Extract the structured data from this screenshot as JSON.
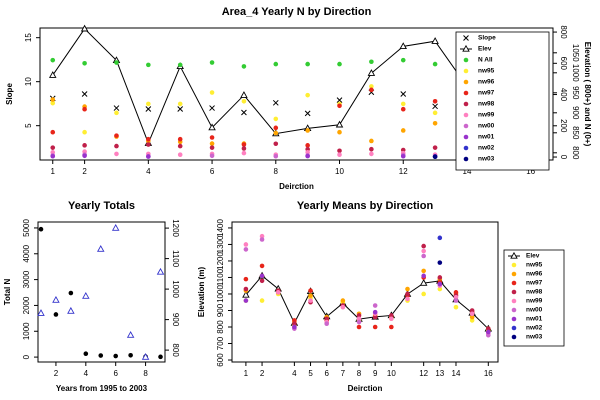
{
  "chart_data": [
    {
      "type": "scatter",
      "title": "Area_4 Yearly N by Direction",
      "xlabel": "Deirction",
      "ylabel": "Slope",
      "y2label": "Elevation ( 800+) and N (0+)",
      "x": [
        1,
        2,
        3,
        4,
        5,
        6,
        7,
        8,
        9,
        10,
        11,
        12,
        13,
        14,
        15,
        16
      ],
      "xlim": [
        0.6,
        16.7
      ],
      "xticks": [
        1,
        2,
        4,
        6,
        8,
        10,
        12,
        14,
        16
      ],
      "ylim": [
        1.1,
        16.1
      ],
      "yticks": [
        5,
        10,
        15
      ],
      "y2lim": [
        -19,
        826
      ],
      "y2ticks": [
        0,
        200,
        400,
        600,
        800
      ],
      "y3lim": [
        782,
        1112
      ],
      "y3ticks": [
        800,
        850,
        900,
        950,
        1000,
        1050
      ],
      "legend": "topright",
      "series": [
        {
          "name": "Slope",
          "color": "#000000",
          "marker": "x",
          "values": [
            8.1,
            8.6,
            7.0,
            6.9,
            6.9,
            7.0,
            6.5,
            7.6,
            6.4,
            7.9,
            8.8,
            8.6,
            7.2,
            6.5,
            6.0,
            6.5
          ]
        },
        {
          "name": "Elev",
          "color": "#000000",
          "marker": "triangle",
          "line": true,
          "axis": "y3",
          "values": [
            994,
            1110,
            1031,
            824,
            1016,
            863,
            944,
            848,
            861,
            870,
            999,
            1066,
            1079,
            966,
            885,
            789
          ]
        },
        {
          "name": "N All",
          "color": "#33cc33",
          "marker": "dot",
          "axis": "y2",
          "values": [
            620,
            600,
            605,
            590,
            590,
            605,
            580,
            595,
            595,
            595,
            610,
            620,
            595,
            595,
            590,
            580
          ]
        },
        {
          "name": "nw95",
          "color": "#ffee33",
          "marker": "dot",
          "axis": "y2",
          "values": [
            345,
            159,
            283,
            340,
            340,
            413,
            357,
            244,
            396,
            340,
            452,
            340,
            283,
            227,
            25,
            10
          ]
        },
        {
          "name": "nw96",
          "color": "#ffa500",
          "marker": "dot",
          "axis": "y2",
          "values": [
            368,
            323,
            131,
            103,
            97,
            86,
            86,
            154,
            170,
            159,
            103,
            170,
            216,
            216,
            10,
            5
          ]
        },
        {
          "name": "nw97",
          "color": "#e8251a",
          "marker": "dot",
          "axis": "y2",
          "values": [
            159,
            306,
            137,
            114,
            114,
            125,
            80,
            187,
            75,
            328,
            430,
            306,
            357,
            390,
            526,
            233
          ]
        },
        {
          "name": "nw98",
          "color": "#c0204a",
          "marker": "dot",
          "axis": "y2",
          "values": [
            60,
            75,
            70,
            80,
            70,
            60,
            55,
            85,
            50,
            40,
            50,
            45,
            60,
            55,
            15,
            20
          ]
        },
        {
          "name": "nw99",
          "color": "#ff80c0",
          "marker": "dot",
          "axis": "y2",
          "values": [
            30,
            35,
            20,
            20,
            15,
            20,
            25,
            15,
            30,
            15,
            20,
            25,
            15,
            20,
            10,
            5
          ]
        },
        {
          "name": "nw00",
          "color": "#cc66cc",
          "marker": "dot",
          "axis": "y2",
          "values": [
            10,
            15,
            null,
            5,
            null,
            8,
            null,
            5,
            10,
            null,
            null,
            12,
            null,
            5,
            null,
            3
          ]
        },
        {
          "name": "nw01",
          "color": "#9933cc",
          "marker": "dot",
          "axis": "y2",
          "values": [
            5,
            8,
            null,
            3,
            null,
            null,
            null,
            null,
            6,
            null,
            null,
            5,
            4,
            null,
            null,
            2
          ]
        },
        {
          "name": "nw02",
          "color": "#3333cc",
          "marker": "dot",
          "axis": "y2",
          "values": [
            null,
            null,
            null,
            null,
            null,
            null,
            null,
            null,
            null,
            null,
            null,
            null,
            3,
            null,
            null,
            null
          ]
        },
        {
          "name": "nw03",
          "color": "#000080",
          "marker": "dot",
          "axis": "y2",
          "values": [
            null,
            null,
            null,
            null,
            null,
            null,
            null,
            null,
            null,
            null,
            null,
            null,
            2,
            null,
            null,
            null
          ]
        }
      ]
    },
    {
      "type": "scatter",
      "title": "Yearly Totals",
      "xlabel": "Years from 1995 to 2003",
      "ylabel": "Total N",
      "x": [
        1,
        2,
        3,
        4,
        5,
        6,
        7,
        8,
        9
      ],
      "xlim": [
        0.8,
        9.3
      ],
      "xticks": [
        2,
        4,
        6,
        8
      ],
      "ylim": [
        -190,
        5230
      ],
      "yticks": [
        0,
        1000,
        2000,
        3000,
        4000,
        5000
      ],
      "y2lim": [
        761,
        1220
      ],
      "y2ticks": [
        800,
        900,
        1000,
        1100,
        1200
      ],
      "series": [
        {
          "color": "#000000",
          "marker": "dot",
          "values": [
            4950,
            1650,
            2480,
            130,
            60,
            40,
            70,
            20,
            10
          ]
        },
        {
          "color": "#3333cc",
          "marker": "triangle",
          "axis": "y2",
          "values": [
            921,
            964,
            928,
            977,
            1131,
            1200,
            849,
            777,
            1056
          ]
        }
      ]
    },
    {
      "type": "scatter",
      "title": "Yearly Means by Direction",
      "xlabel": "Deirction",
      "ylabel": "Elevation (m)",
      "x": [
        1,
        2,
        3,
        4,
        5,
        6,
        7,
        8,
        9,
        10,
        11,
        12,
        13,
        14,
        15,
        16
      ],
      "xlim": [
        0.14,
        16.6
      ],
      "xticks": [
        1,
        2,
        4,
        5,
        6,
        7,
        8,
        9,
        10,
        12,
        13,
        14,
        16
      ],
      "ylim": [
        588,
        1436
      ],
      "yticks": [
        600,
        700,
        800,
        900,
        1000,
        1100,
        1200,
        1300,
        1400
      ],
      "legend": "right",
      "series": [
        {
          "name": "Elev",
          "color": "#000000",
          "marker": "triangle",
          "line": true,
          "values": [
            994,
            1110,
            1031,
            824,
            1016,
            863,
            944,
            848,
            861,
            870,
            999,
            1066,
            1079,
            966,
            885,
            789
          ]
        },
        {
          "name": "nw95",
          "color": "#ffee33",
          "marker": "dot",
          "values": [
            960,
            960,
            1000,
            810,
            975,
            830,
            950,
            840,
            870,
            850,
            960,
            1000,
            1030,
            920,
            840,
            780
          ]
        },
        {
          "name": "nw96",
          "color": "#ffa500",
          "marker": "dot",
          "values": [
            1020,
            1110,
            1020,
            830,
            990,
            860,
            960,
            880,
            870,
            860,
            1030,
            1140,
            1090,
            1000,
            860,
            790
          ]
        },
        {
          "name": "nw97",
          "color": "#e8251a",
          "marker": "dot",
          "values": [
            1090,
            1170,
            1010,
            840,
            1020,
            840,
            930,
            800,
            800,
            800,
            990,
            1100,
            1070,
            1010,
            890,
            770
          ]
        },
        {
          "name": "nw98",
          "color": "#c0204a",
          "marker": "dot",
          "values": [
            1030,
            1080,
            1020,
            820,
            950,
            850,
            930,
            870,
            860,
            870,
            1000,
            1290,
            1100,
            990,
            900,
            790
          ]
        },
        {
          "name": "nw99",
          "color": "#ff80c0",
          "marker": "dot",
          "values": [
            1300,
            1350,
            1010,
            800,
            960,
            830,
            920,
            850,
            880,
            850,
            970,
            1260,
            1050,
            980,
            880,
            760
          ]
        },
        {
          "name": "nw00",
          "color": "#cc66cc",
          "marker": "dot",
          "values": [
            1270,
            1330,
            null,
            790,
            null,
            820,
            null,
            830,
            930,
            null,
            null,
            1230,
            null,
            960,
            null,
            750
          ]
        },
        {
          "name": "nw01",
          "color": "#9933cc",
          "marker": "dot",
          "values": [
            960,
            1110,
            null,
            800,
            null,
            null,
            null,
            null,
            890,
            null,
            null,
            1110,
            1060,
            null,
            null,
            770
          ]
        },
        {
          "name": "nw02",
          "color": "#3333cc",
          "marker": "dot",
          "values": [
            null,
            null,
            null,
            null,
            null,
            null,
            null,
            null,
            null,
            null,
            null,
            null,
            1340,
            null,
            null,
            null
          ]
        },
        {
          "name": "nw03",
          "color": "#000080",
          "marker": "dot",
          "values": [
            null,
            null,
            null,
            null,
            null,
            null,
            null,
            null,
            null,
            null,
            null,
            null,
            1190,
            null,
            null,
            null
          ]
        }
      ]
    }
  ]
}
